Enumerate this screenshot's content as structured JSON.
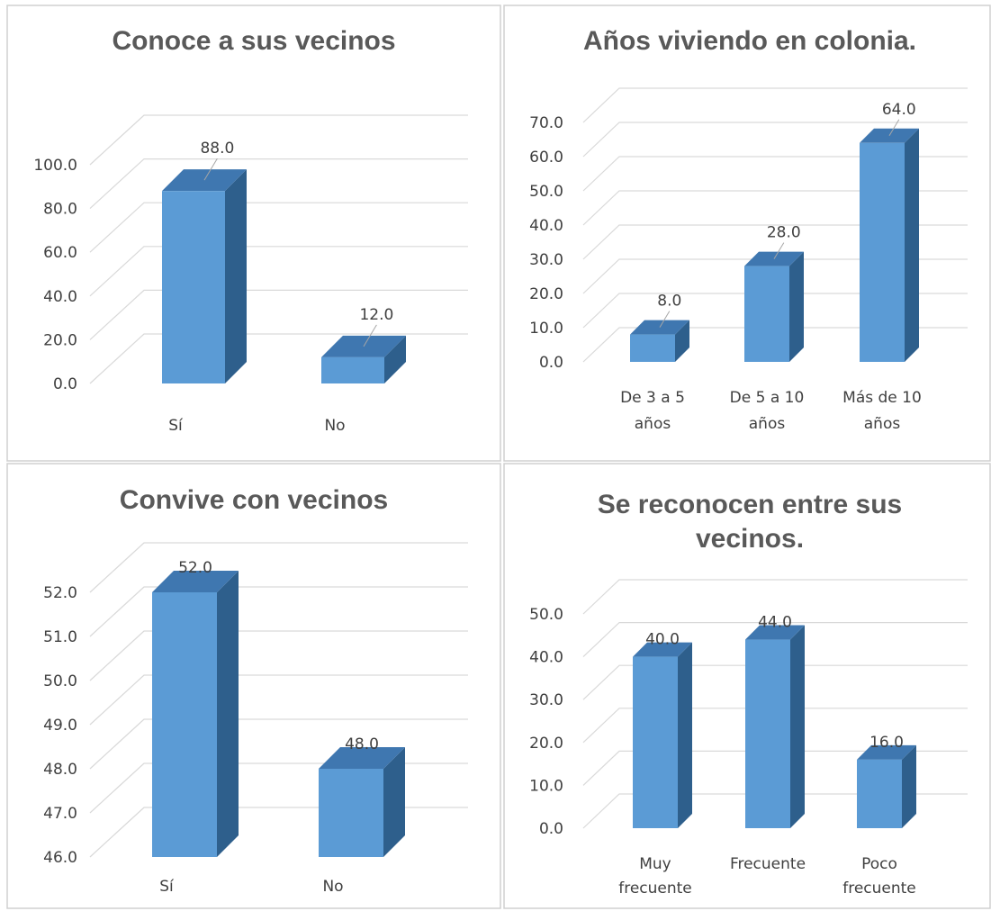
{
  "colors": {
    "bar_front": "#5b9bd5",
    "bar_side": "#2e5f8c",
    "bar_top": "#3f77b0",
    "grid": "#d9d9d9",
    "text": "#404040",
    "title": "#595959"
  },
  "chart_data": [
    {
      "type": "bar",
      "title": "Conoce a sus vecinos",
      "categories": [
        "Sí",
        "No"
      ],
      "values": [
        88.0,
        12.0
      ],
      "data_labels": [
        "88.0",
        "12.0"
      ],
      "ylim": [
        0,
        100
      ],
      "yticks": [
        "0.0",
        "20.0",
        "40.0",
        "60.0",
        "80.0",
        "100.0"
      ],
      "grid": true
    },
    {
      "type": "bar",
      "title": "Años viviendo en colonia.",
      "categories": [
        "De 3 a 5 años",
        "De 5 a 10 años",
        "Más de 10 años"
      ],
      "values": [
        8.0,
        28.0,
        64.0
      ],
      "data_labels": [
        "8.0",
        "28.0",
        "64.0"
      ],
      "ylim": [
        0,
        70
      ],
      "yticks": [
        "0.0",
        "10.0",
        "20.0",
        "30.0",
        "40.0",
        "50.0",
        "60.0",
        "70.0"
      ],
      "grid": true
    },
    {
      "type": "bar",
      "title": "Convive con vecinos",
      "categories": [
        "Sí",
        "No"
      ],
      "values": [
        52.0,
        48.0
      ],
      "data_labels": [
        "52.0",
        "48.0"
      ],
      "ylim": [
        46,
        52
      ],
      "yticks": [
        "46.0",
        "47.0",
        "48.0",
        "49.0",
        "50.0",
        "51.0",
        "52.0"
      ],
      "grid": true
    },
    {
      "type": "bar",
      "title": "Se reconocen entre sus vecinos.",
      "categories": [
        "Muy frecuente",
        "Frecuente",
        "Poco frecuente"
      ],
      "values": [
        40.0,
        44.0,
        16.0
      ],
      "data_labels": [
        "40.0",
        "44.0",
        "16.0"
      ],
      "ylim": [
        0,
        50
      ],
      "yticks": [
        "0.0",
        "10.0",
        "20.0",
        "30.0",
        "40.0",
        "50.0"
      ],
      "grid": true
    }
  ]
}
